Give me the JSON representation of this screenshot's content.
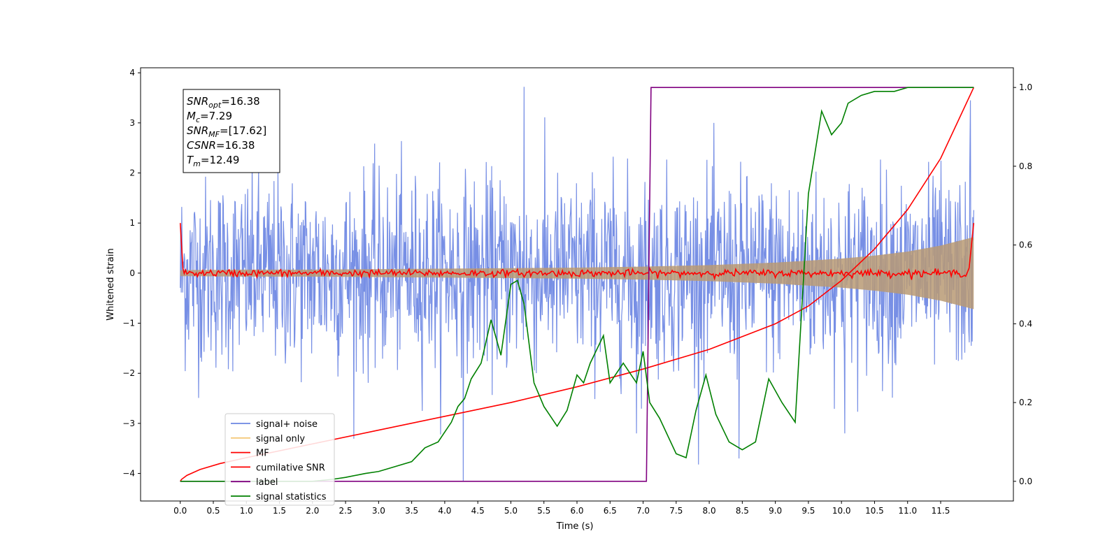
{
  "chart_data": {
    "type": "line",
    "xlabel": "Time (s)",
    "ylabel": "Whitened strain",
    "xlim": [
      -0.6,
      12.6
    ],
    "ylim": [
      -4.55,
      4.1
    ],
    "y2lim": [
      -0.05,
      1.05
    ],
    "x_ticks": [
      0.0,
      0.5,
      1.0,
      1.5,
      2.0,
      2.5,
      3.0,
      3.5,
      4.0,
      4.5,
      5.0,
      5.5,
      6.0,
      6.5,
      7.0,
      7.5,
      8.0,
      8.5,
      9.0,
      9.5,
      10.0,
      10.5,
      11.0,
      11.5
    ],
    "x_tick_labels": [
      "0.0",
      "0.5",
      "1.0",
      "1.5",
      "2.0",
      "2.5",
      "3.0",
      "3.5",
      "4.0",
      "4.5",
      "5.0",
      "5.5",
      "6.0",
      "6.5",
      "7.0",
      "7.5",
      "8.0",
      "8.5",
      "9.0",
      "9.5",
      "10.0",
      "10.5",
      "11.0",
      "11.5"
    ],
    "y_ticks": [
      4,
      3,
      2,
      1,
      0,
      -1,
      -2,
      -3,
      -4
    ],
    "y_tick_labels": [
      "4",
      "3",
      "2",
      "1",
      "0",
      "−1",
      "−2",
      "−3",
      "−4"
    ],
    "y2_ticks": [
      1.0,
      0.8,
      0.6,
      0.4,
      0.2,
      0.0
    ],
    "y2_tick_labels": [
      "1.0",
      "0.8",
      "0.6",
      "0.4",
      "0.2",
      "0.0"
    ],
    "legend_position": "lower-left",
    "series": [
      {
        "name": "signal+ noise",
        "color": "#6b86e3",
        "axis": "left",
        "kind": "noise",
        "x_range": [
          0.0,
          12.0
        ],
        "sample_count": 1600,
        "std": 0.95,
        "peaks": [
          [
            5.2,
            3.72
          ],
          [
            4.28,
            -4.15
          ],
          [
            8.45,
            -3.7
          ],
          [
            11.95,
            3.45
          ],
          [
            10.05,
            -3.2
          ],
          [
            6.9,
            -3.2
          ]
        ]
      },
      {
        "name": "signal only",
        "color": "#f5c97a",
        "axis": "left",
        "kind": "envelope",
        "x": [
          0.0,
          1.0,
          2.0,
          3.0,
          4.0,
          5.0,
          6.0,
          7.0,
          8.0,
          9.0,
          10.0,
          10.5,
          11.0,
          11.5,
          12.0
        ],
        "amplitude": [
          0.06,
          0.07,
          0.07,
          0.08,
          0.09,
          0.1,
          0.11,
          0.13,
          0.16,
          0.21,
          0.29,
          0.35,
          0.43,
          0.55,
          0.72
        ]
      },
      {
        "name": "MF",
        "color": "#ff0000",
        "axis": "left",
        "kind": "noise",
        "x_range": [
          0.0,
          12.0
        ],
        "sample_count": 600,
        "std": 0.035,
        "endpoints": [
          [
            0.0,
            1.0
          ],
          [
            0.04,
            0.1
          ],
          [
            11.93,
            0.1
          ],
          [
            12.0,
            1.0
          ]
        ]
      },
      {
        "name": "cumilative SNR",
        "color": "#ff0000",
        "axis": "right",
        "x": [
          0.0,
          0.02,
          0.1,
          0.3,
          0.6,
          1.0,
          2.0,
          3.0,
          4.0,
          5.0,
          6.0,
          7.0,
          8.0,
          9.0,
          9.5,
          10.0,
          10.5,
          11.0,
          11.5,
          12.0
        ],
        "y": [
          0.0,
          0.005,
          0.015,
          0.03,
          0.045,
          0.06,
          0.095,
          0.13,
          0.165,
          0.2,
          0.24,
          0.285,
          0.335,
          0.4,
          0.445,
          0.51,
          0.59,
          0.69,
          0.82,
          1.0
        ]
      },
      {
        "name": "label",
        "color": "#800080",
        "axis": "right",
        "x": [
          0.0,
          7.05,
          7.12,
          12.0
        ],
        "y": [
          0.0,
          0.0,
          1.0,
          1.0
        ]
      },
      {
        "name": "signal statistics",
        "color": "#008000",
        "axis": "right",
        "x": [
          0.0,
          2.0,
          2.3,
          2.5,
          2.8,
          3.0,
          3.2,
          3.5,
          3.7,
          3.9,
          4.1,
          4.2,
          4.3,
          4.4,
          4.55,
          4.7,
          4.85,
          5.0,
          5.1,
          5.2,
          5.35,
          5.5,
          5.7,
          5.85,
          6.0,
          6.1,
          6.2,
          6.4,
          6.5,
          6.7,
          6.9,
          7.0,
          7.1,
          7.25,
          7.5,
          7.65,
          7.8,
          7.95,
          8.1,
          8.3,
          8.5,
          8.7,
          8.9,
          9.1,
          9.3,
          9.5,
          9.7,
          9.85,
          10.0,
          10.1,
          10.3,
          10.5,
          10.8,
          11.0,
          12.0
        ],
        "y": [
          0.0,
          0.0,
          0.005,
          0.01,
          0.02,
          0.025,
          0.035,
          0.05,
          0.085,
          0.1,
          0.15,
          0.19,
          0.21,
          0.26,
          0.3,
          0.41,
          0.32,
          0.5,
          0.51,
          0.45,
          0.25,
          0.19,
          0.14,
          0.18,
          0.27,
          0.25,
          0.3,
          0.37,
          0.25,
          0.3,
          0.25,
          0.33,
          0.2,
          0.16,
          0.07,
          0.06,
          0.18,
          0.27,
          0.17,
          0.1,
          0.08,
          0.1,
          0.26,
          0.2,
          0.15,
          0.73,
          0.94,
          0.88,
          0.91,
          0.96,
          0.98,
          0.99,
          0.99,
          1.0,
          1.0
        ]
      }
    ],
    "stats_box": [
      {
        "base": "SNR",
        "sub": "opt",
        "value": "=16.38"
      },
      {
        "base": "M",
        "sub": "c",
        "value": "=7.29"
      },
      {
        "base": "SNR",
        "sub": "MF",
        "value": "=[17.62]"
      },
      {
        "base": "CSNR",
        "sub": "",
        "value": "=16.38"
      },
      {
        "base": "T",
        "sub": "m",
        "value": "=12.49"
      }
    ]
  }
}
